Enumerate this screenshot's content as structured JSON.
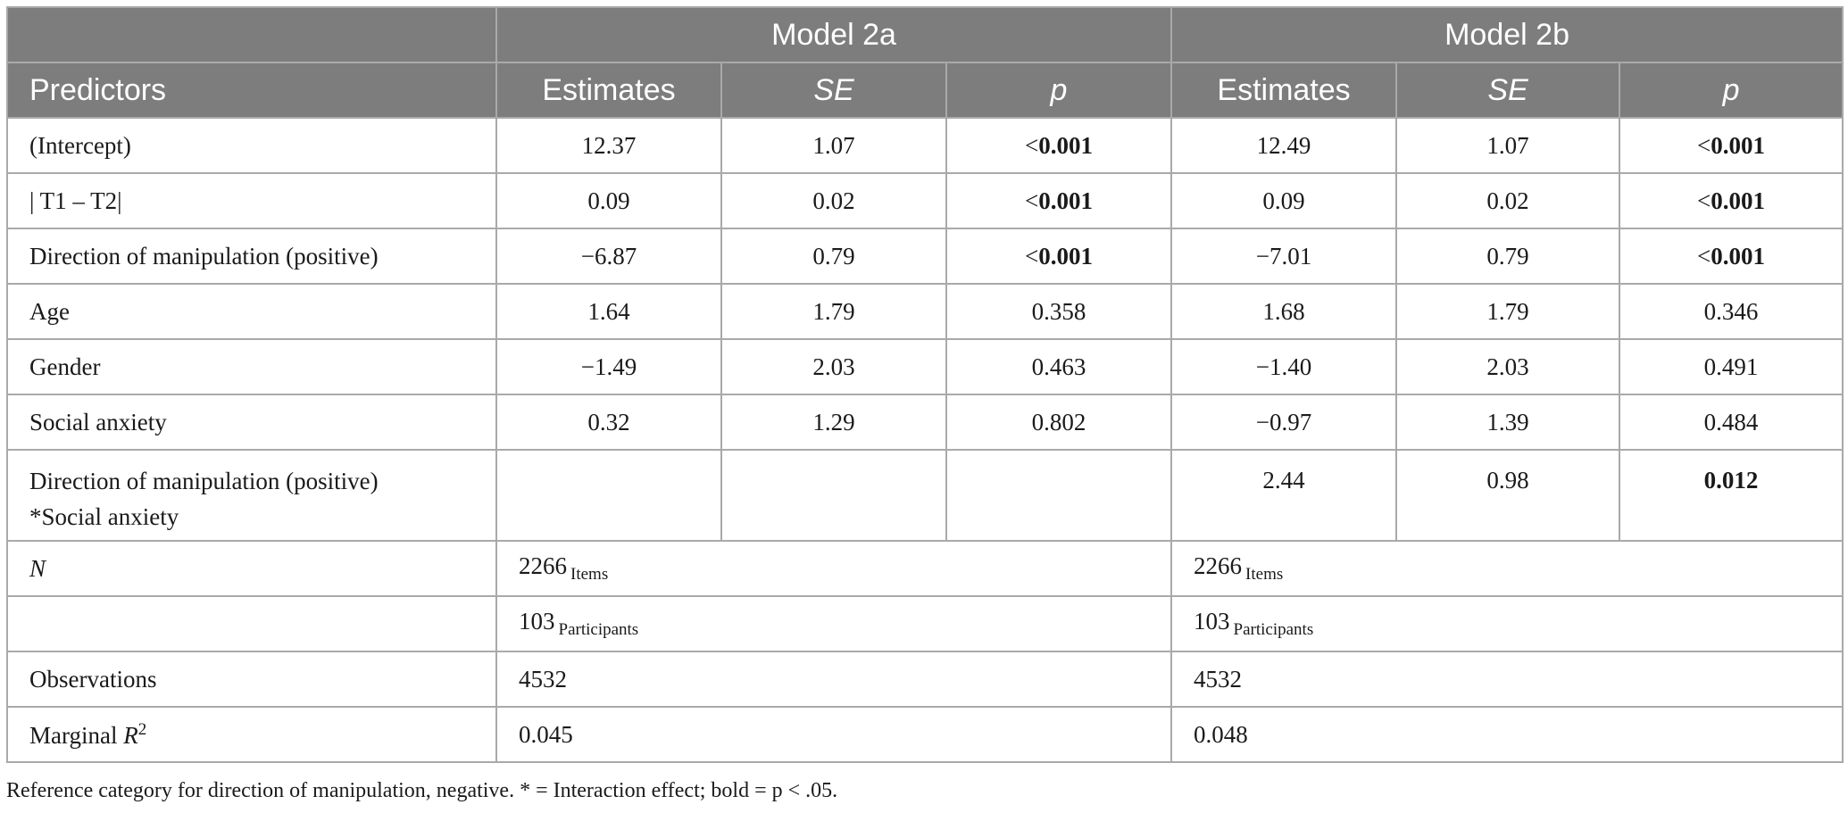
{
  "header": {
    "model_a": "Model 2a",
    "model_b": "Model 2b",
    "predictors": "Predictors",
    "estimates": "Estimates",
    "se": "SE",
    "p": "p"
  },
  "rows": [
    {
      "label": "(Intercept)",
      "a_est": "12.37",
      "a_se": "1.07",
      "a_p_prefix": "<",
      "a_p": "0.001",
      "b_est": "12.49",
      "b_se": "1.07",
      "b_p_prefix": "<",
      "b_p": "0.001"
    },
    {
      "label": "| T1 – T2|",
      "a_est": "0.09",
      "a_se": "0.02",
      "a_p_prefix": "<",
      "a_p": "0.001",
      "b_est": "0.09",
      "b_se": "0.02",
      "b_p_prefix": "<",
      "b_p": "0.001"
    },
    {
      "label": "Direction of manipulation (positive)",
      "a_est": "−6.87",
      "a_se": "0.79",
      "a_p_prefix": "<",
      "a_p": "0.001",
      "b_est": "−7.01",
      "b_se": "0.79",
      "b_p_prefix": "<",
      "b_p": "0.001"
    },
    {
      "label": "Age",
      "a_est": "1.64",
      "a_se": "1.79",
      "a_p": "0.358",
      "b_est": "1.68",
      "b_se": "1.79",
      "b_p": "0.346"
    },
    {
      "label": "Gender",
      "a_est": "−1.49",
      "a_se": "2.03",
      "a_p": "0.463",
      "b_est": "−1.40",
      "b_se": "2.03",
      "b_p": "0.491"
    },
    {
      "label": "Social anxiety",
      "a_est": "0.32",
      "a_se": "1.29",
      "a_p": "0.802",
      "b_est": "−0.97",
      "b_se": "1.39",
      "b_p": "0.484"
    },
    {
      "label_line1": "Direction of manipulation (positive)",
      "label_line2": "*Social anxiety",
      "b_est": "2.44",
      "b_se": "0.98",
      "b_p": "0.012"
    }
  ],
  "n_row": {
    "label": "N",
    "a_items": "2266",
    "b_items": "2266",
    "items_sub": "Items",
    "a_participants": "103",
    "b_participants": "103",
    "participants_sub": "Participants"
  },
  "observations": {
    "label": "Observations",
    "a": "4532",
    "b": "4532"
  },
  "marginal_r2": {
    "label": "Marginal ",
    "label_var": "R",
    "label_sup": "2",
    "a": "0.045",
    "b": "0.048"
  },
  "note": "Reference category for direction of manipulation, negative. * = Interaction effect; bold = p < .05."
}
